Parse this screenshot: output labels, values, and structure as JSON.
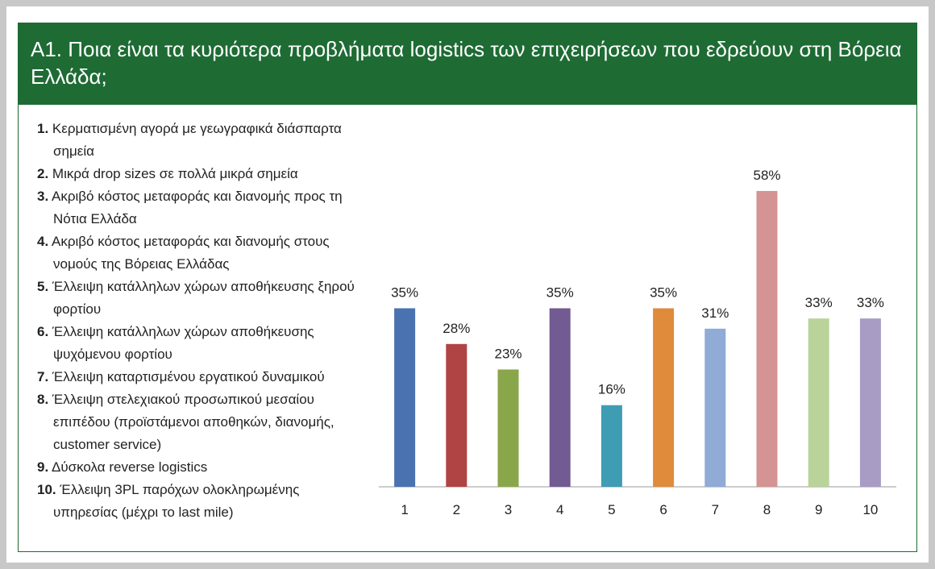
{
  "chart_data": {
    "type": "bar",
    "title": "A1. Ποια είναι τα κυριότερα προβλήματα logistics των επιχειρήσεων που εδρεύουν στη Βόρεια Ελλάδα;",
    "items": [
      {
        "number": "1.",
        "text": "Κερματισμένη αγορά με γεωγραφικά διάσπαρτα σημεία"
      },
      {
        "number": "2.",
        "text": "Μικρά drop sizes σε πολλά μικρά σημεία"
      },
      {
        "number": "3.",
        "text": "Ακριβό κόστος μεταφοράς και διανομής προς τη Νότια Ελλάδα"
      },
      {
        "number": "4.",
        "text": "Ακριβό κόστος μεταφοράς και διανομής στους νομούς της Βόρειας Ελλάδας"
      },
      {
        "number": "5.",
        "text": "Έλλειψη κατάλληλων χώρων αποθήκευσης ξηρού φορτίου"
      },
      {
        "number": "6.",
        "text": "Έλλειψη κατάλληλων χώρων αποθήκευσης ψυχόμενου φορτίου"
      },
      {
        "number": "7.",
        "text": "Έλλειψη καταρτισμένου εργατικού δυναμικού"
      },
      {
        "number": "8.",
        "text": "Έλλειψη στελεχιακού προσωπικού μεσαίου επιπέδου (προϊστάμενοι αποθηκών, διανομής, customer service)"
      },
      {
        "number": "9.",
        "text": "Δύσκολα reverse logistics"
      },
      {
        "number": "10.",
        "text": "Έλλειψη 3PL παρόχων ολοκληρωμένης υπηρεσίας (μέχρι το last mile)"
      }
    ],
    "categories": [
      "1",
      "2",
      "3",
      "4",
      "5",
      "6",
      "7",
      "8",
      "9",
      "10"
    ],
    "values": [
      35,
      28,
      23,
      35,
      16,
      35,
      31,
      58,
      33,
      33
    ],
    "value_labels": [
      "35%",
      "28%",
      "23%",
      "35%",
      "16%",
      "35%",
      "31%",
      "58%",
      "33%",
      "33%"
    ],
    "colors": [
      "#4a72b0",
      "#b04444",
      "#8aa64a",
      "#725a92",
      "#3e9cb3",
      "#e08a3c",
      "#8fabd6",
      "#d49494",
      "#b9d39a",
      "#a89cc4"
    ],
    "ylim": [
      0,
      70
    ]
  }
}
